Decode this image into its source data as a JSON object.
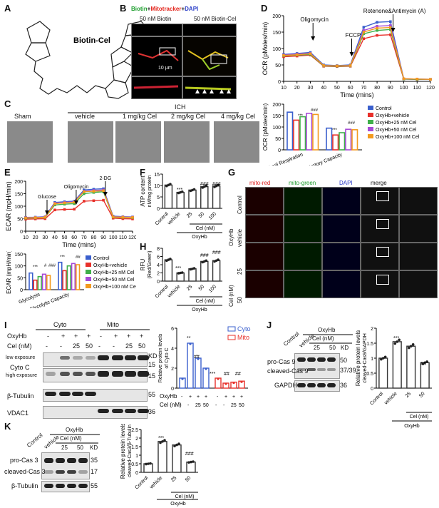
{
  "panels": {
    "A": "A",
    "B": "B",
    "C": "C",
    "D": "D",
    "E": "E",
    "F": "F",
    "G": "G",
    "H": "H",
    "I": "I",
    "J": "J",
    "K": "K"
  },
  "A": {
    "compound": "Biotin-Cel"
  },
  "B": {
    "title_biotin": "Biotin",
    "title_plus1": "+",
    "title_mito": "Mitotracker",
    "title_plus2": "+",
    "title_dapi": "DAPI",
    "col1": "50 nM Biotin",
    "col2": "50 nM Biotin-Cel",
    "scale": "10 μm"
  },
  "C": {
    "group": "ICH",
    "labels": [
      "Sham",
      "vehicle",
      "1 mg/kg Cel",
      "2 mg/kg Cel",
      "4 mg/kg Cel"
    ]
  },
  "D": {
    "ylabel": "OCR (pMoles/min)",
    "xlabel": "Time (mins)",
    "annot_oligo": "Oligomycin",
    "annot_fccp": "FCCP",
    "annot_rot": "Rotenone&Antimycin (A)",
    "bar_ylabel": "OCR (pMoles/min)",
    "bar_cats": [
      "Maximal Respiration",
      "Spare Respiratory Capacity"
    ],
    "legend": [
      "Control",
      "OxyHb+vehicle",
      "OxyHb+25 nM Cel",
      "OxyHb+50 nM Cel",
      "OxyHb+100 nM Cel"
    ]
  },
  "E": {
    "ylabel": "ECAR (mpH/min)",
    "xlabel": "Time (mins)",
    "annot_glc": "Glucose",
    "annot_oligo": "Oligomycin",
    "annot_dg": "2-DG",
    "bar_ylabel": "ECAR (mpH/min)",
    "bar_cats": [
      "Glycolysis",
      "Glycolytic Capacity"
    ],
    "legend": [
      "Control",
      "OxyHb+vehicle",
      "OxyHb+25 nM Cel",
      "OxyHb+50 nM Cel",
      "OxyHb+100 nM Cel"
    ]
  },
  "F": {
    "ylabel": "ATP content",
    "ylabel2": "nM/mg protein",
    "xcats": [
      "Control",
      "vehicle",
      "25",
      "50",
      "100"
    ],
    "group": "Cel (nM)",
    "group2": "OxyHb"
  },
  "H": {
    "ylabel": "RFU",
    "ylabel2": "(Red/Green)",
    "xcats": [
      "Control",
      "vehicle",
      "25",
      "50",
      "100"
    ],
    "group": "Cel (nM)",
    "group2": "OxyHb"
  },
  "G": {
    "cols": [
      "mito-red",
      "mito-green",
      "DAPI",
      "merge"
    ],
    "rows": [
      "Control",
      "vehicle",
      "25",
      "50"
    ],
    "side_oxy": "OxyHb",
    "side_cel": "Cel (nM)",
    "scale": "100 μm"
  },
  "I": {
    "cyto": "Cyto",
    "mito": "Mito",
    "oxyhb": "OxyHb",
    "cel": "Cel (nM)",
    "signs": [
      "-",
      "+",
      "+",
      "+"
    ],
    "cel_vals": [
      "-",
      "-",
      "25",
      "50"
    ],
    "kd": "KD",
    "low": "low exposure",
    "high": "high exposure",
    "cytc": "Cyto C",
    "tub": "β-Tubulin",
    "vdac": "VDAC1",
    "mw": [
      "15",
      "15",
      "55",
      "36"
    ],
    "bar_ylabel": "Relative protein levels",
    "bar_ylabel2": "of Cyto C",
    "legend_cyto": "Cyto",
    "legend_mito": "Mito"
  },
  "J": {
    "control": "Control",
    "vehicle": "vehicle",
    "oxyhb": "OxyHb",
    "cel": "Cel (nM)",
    "c25": "25",
    "c50": "50",
    "kd": "KD",
    "pro": "pro-Cas 9",
    "cleaved": "cleaved-Cas 9",
    "gapdh": "GAPDH",
    "mw": [
      "50",
      "37/39",
      "36"
    ],
    "bar_ylabel": "Relative protein levels",
    "bar_ylabel2": "cleaved-Cas9/GAPDH",
    "xcats": [
      "Control",
      "vehicle",
      "25",
      "50"
    ]
  },
  "K": {
    "control": "Control",
    "vehicle": "vehicle",
    "oxyhb": "OxyHb",
    "cel": "Cel (nM)",
    "c25": "25",
    "c50": "50",
    "kd": "KD",
    "pro": "pro-Cas 3",
    "cleaved": "cleaved-Cas 3",
    "tub": "β-Tubulin",
    "mw": [
      "35",
      "17",
      "55"
    ],
    "bar_ylabel": "Relative protein levels",
    "bar_ylabel2": "cleaved-Cas3/β-Tubulin",
    "xcats": [
      "Control",
      "vehicle",
      "25",
      "50"
    ]
  },
  "sig": {
    "three": "***",
    "two": "**",
    "hash3": "###",
    "hash2": "##",
    "hash1": "#"
  },
  "colors": {
    "control": "#3a5fcd",
    "vehicle": "#e8302a",
    "c25": "#3fb04a",
    "c50": "#a64ad6",
    "c100": "#f39a1e"
  },
  "chart_data": [
    {
      "type": "line",
      "id": "D-OCR",
      "x": [
        10,
        20,
        30,
        40,
        50,
        60,
        70,
        80,
        90,
        100,
        110,
        120
      ],
      "xlim": [
        10,
        120
      ],
      "ylim": [
        0,
        200
      ],
      "series": [
        {
          "name": "Control",
          "values": [
            82,
            85,
            88,
            50,
            48,
            50,
            165,
            180,
            182,
            8,
            7,
            6
          ]
        },
        {
          "name": "OxyHb+vehicle",
          "values": [
            75,
            77,
            80,
            46,
            45,
            46,
            130,
            140,
            142,
            7,
            6,
            6
          ]
        },
        {
          "name": "OxyHb+25 nM Cel",
          "values": [
            78,
            80,
            82,
            47,
            46,
            47,
            145,
            155,
            158,
            7,
            6,
            6
          ]
        },
        {
          "name": "OxyHb+50 nM Cel",
          "values": [
            80,
            83,
            85,
            48,
            47,
            48,
            155,
            168,
            170,
            8,
            7,
            6
          ]
        },
        {
          "name": "OxyHb+100 nM Cel",
          "values": [
            79,
            81,
            84,
            48,
            47,
            48,
            150,
            162,
            164,
            8,
            7,
            6
          ]
        }
      ]
    },
    {
      "type": "bar",
      "id": "D-bar",
      "categories": [
        "Maximal Respiration",
        "Spare Respiratory Capacity"
      ],
      "ylim": [
        0,
        200
      ],
      "series": [
        {
          "name": "Control",
          "values": [
            165,
            95
          ]
        },
        {
          "name": "OxyHb+vehicle",
          "values": [
            130,
            65
          ]
        },
        {
          "name": "OxyHb+25 nM Cel",
          "values": [
            145,
            75
          ]
        },
        {
          "name": "OxyHb+50 nM Cel",
          "values": [
            160,
            90
          ]
        },
        {
          "name": "OxyHb+100 nM Cel",
          "values": [
            155,
            88
          ]
        }
      ]
    },
    {
      "type": "line",
      "id": "E-ECAR",
      "x": [
        10,
        20,
        30,
        40,
        50,
        60,
        70,
        80,
        90,
        100,
        110,
        120
      ],
      "xlim": [
        10,
        120
      ],
      "ylim": [
        0,
        200
      ],
      "series": [
        {
          "name": "Control",
          "values": [
            55,
            56,
            58,
            115,
            118,
            120,
            165,
            168,
            170,
            60,
            58,
            57
          ]
        },
        {
          "name": "OxyHb+vehicle",
          "values": [
            48,
            49,
            50,
            85,
            87,
            88,
            120,
            122,
            124,
            52,
            50,
            49
          ]
        },
        {
          "name": "OxyHb+25 nM Cel",
          "values": [
            52,
            53,
            55,
            105,
            108,
            110,
            150,
            155,
            158,
            56,
            55,
            54
          ]
        },
        {
          "name": "OxyHb+50 nM Cel",
          "values": [
            54,
            55,
            57,
            112,
            115,
            118,
            160,
            163,
            165,
            58,
            57,
            56
          ]
        },
        {
          "name": "OxyHb+100 nM Cel",
          "values": [
            53,
            54,
            56,
            110,
            113,
            116,
            158,
            160,
            162,
            57,
            56,
            55
          ]
        }
      ]
    },
    {
      "type": "bar",
      "id": "E-bar",
      "categories": [
        "Glycolysis",
        "Glycolytic Capacity"
      ],
      "ylim": [
        0,
        150
      ],
      "series": [
        {
          "name": "Control",
          "values": [
            70,
            115
          ]
        },
        {
          "name": "OxyHb+vehicle",
          "values": [
            40,
            80
          ]
        },
        {
          "name": "OxyHb+25 nM Cel",
          "values": [
            55,
            100
          ]
        },
        {
          "name": "OxyHb+50 nM Cel",
          "values": [
            65,
            110
          ]
        },
        {
          "name": "OxyHb+100 nM Cel",
          "values": [
            60,
            105
          ]
        }
      ]
    },
    {
      "type": "bar",
      "id": "F",
      "categories": [
        "Control",
        "vehicle",
        "25",
        "50",
        "100"
      ],
      "values": [
        10.2,
        7.0,
        8.0,
        9.5,
        9.8
      ],
      "ylim": [
        0,
        15
      ]
    },
    {
      "type": "bar",
      "id": "H",
      "categories": [
        "Control",
        "vehicle",
        "25",
        "50",
        "100"
      ],
      "values": [
        5.2,
        2.0,
        3.0,
        4.8,
        5.0
      ],
      "ylim": [
        0,
        8
      ]
    },
    {
      "type": "bar",
      "id": "I",
      "categories": [
        "-",
        "+",
        "+",
        "+"
      ],
      "series": [
        {
          "name": "Cyto",
          "values": [
            1.0,
            4.5,
            3.0,
            2.0
          ]
        },
        {
          "name": "Mito",
          "values": [
            1.0,
            0.5,
            0.6,
            0.7
          ]
        }
      ],
      "ylim": [
        0,
        6
      ]
    },
    {
      "type": "bar",
      "id": "J",
      "categories": [
        "Control",
        "vehicle",
        "25",
        "50"
      ],
      "values": [
        1.0,
        1.55,
        1.4,
        0.85
      ],
      "ylim": [
        0,
        2.0
      ]
    },
    {
      "type": "bar",
      "id": "K",
      "categories": [
        "Control",
        "vehicle",
        "25",
        "50"
      ],
      "values": [
        0.5,
        1.8,
        1.6,
        0.6
      ],
      "ylim": [
        0,
        2.5
      ]
    }
  ]
}
